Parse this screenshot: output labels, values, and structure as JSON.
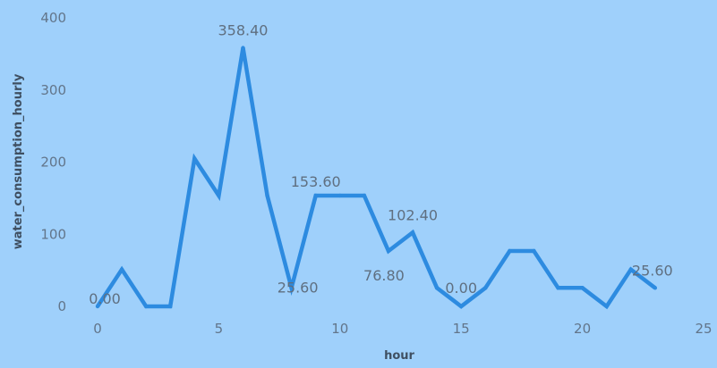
{
  "chart_data": {
    "type": "line",
    "title": "",
    "xlabel": "hour",
    "ylabel": "water_consumption_hourly",
    "xlim": [
      0,
      25
    ],
    "ylim": [
      0,
      400
    ],
    "x_ticks": [
      "0",
      "5",
      "10",
      "15",
      "20",
      "25"
    ],
    "y_ticks": [
      "0",
      "100",
      "200",
      "300",
      "400"
    ],
    "grid": false,
    "legend": "none",
    "series": [
      {
        "color": "#2d8be0",
        "x": [
          0,
          1,
          2,
          3,
          4,
          5,
          6,
          7,
          8,
          9,
          10,
          11,
          12,
          13,
          14,
          15,
          16,
          17,
          18,
          19,
          20,
          21,
          22,
          23
        ],
        "values": [
          0,
          51.2,
          0,
          0,
          204.8,
          153.6,
          358.4,
          153.6,
          25.6,
          153.6,
          153.6,
          153.6,
          76.8,
          102.4,
          25.6,
          0,
          25.6,
          76.8,
          76.8,
          25.6,
          25.6,
          0,
          51.2,
          25.6
        ]
      }
    ],
    "data_labels": [
      {
        "x": 0,
        "y": 0,
        "text": "0.00"
      },
      {
        "x": 6,
        "y": 358.4,
        "text": "358.40"
      },
      {
        "x": 8,
        "y": 25.6,
        "text": "25.60"
      },
      {
        "x": 9,
        "y": 153.6,
        "text": "153.60"
      },
      {
        "x": 12,
        "y": 76.8,
        "text": "76.80"
      },
      {
        "x": 13,
        "y": 102.4,
        "text": "102.40"
      },
      {
        "x": 15,
        "y": 0,
        "text": "0.00"
      },
      {
        "x": 23,
        "y": 25.6,
        "text": "25.60"
      }
    ]
  }
}
